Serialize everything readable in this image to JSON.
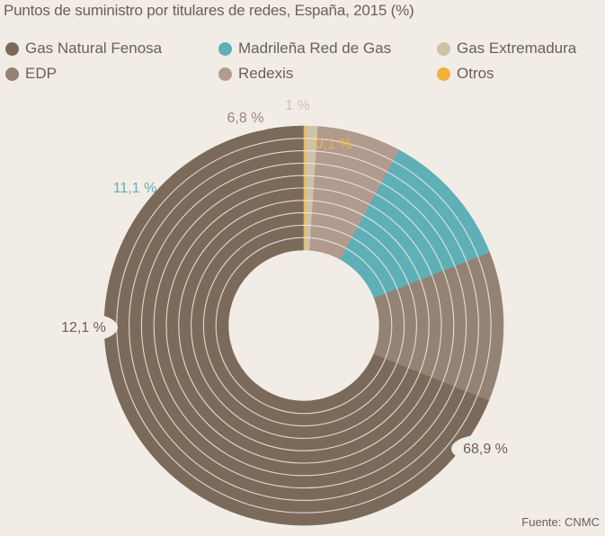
{
  "chart_data": {
    "type": "pie",
    "title": "Puntos de suministro por titulares de redes, España, 2015 (%)",
    "source": "Fuente: CNMC",
    "categories": [
      "Gas Natural Fenosa",
      "Madrileña Red de Gas",
      "Gas Extremadura",
      "EDP",
      "Redexis",
      "Otros"
    ],
    "values": [
      68.9,
      11.1,
      1.0,
      12.1,
      6.8,
      0.1
    ],
    "value_labels": [
      "68,9 %",
      "11,1 %",
      "1 %",
      "12,1 %",
      "6,8 %",
      "0,1 %"
    ],
    "colors": [
      "#7b6a5a",
      "#5fb0b6",
      "#cfc3a6",
      "#948374",
      "#b19b8e",
      "#f0b43c"
    ],
    "label_colors": [
      "#6b5f55",
      "#5fb0b6",
      "#cfc3a6",
      "#6b5f55",
      "#9c8475",
      "#f0b43c"
    ],
    "draw_order": [
      0,
      3,
      1,
      4,
      2,
      5
    ],
    "start_angle_deg": 90,
    "direction": "counterclockwise",
    "donut": true,
    "legend_position": "top"
  }
}
